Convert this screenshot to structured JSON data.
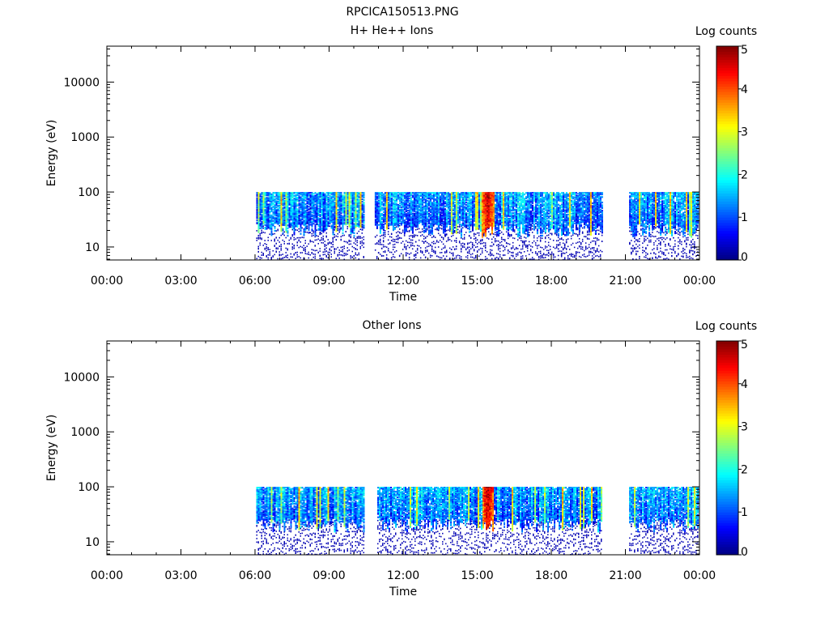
{
  "figure_title": "RPCICA150513.PNG",
  "colorbar": {
    "label": "Log counts",
    "min": 0,
    "max": 5,
    "ticks": [
      "0",
      "1",
      "2",
      "3",
      "4",
      "5"
    ],
    "colormap": "jet"
  },
  "chart_data": [
    {
      "type": "heatmap",
      "title": "H+ He++ Ions",
      "xlabel": "Time",
      "ylabel": "Energy (eV)",
      "x_ticks": [
        "00:00",
        "03:00",
        "06:00",
        "09:00",
        "12:00",
        "15:00",
        "18:00",
        "21:00",
        "00:00"
      ],
      "xlim_hours": [
        0,
        24
      ],
      "y_ticks": [
        "10",
        "100",
        "1000",
        "10000"
      ],
      "y_scale": "log",
      "ylim": [
        5.8,
        45000
      ],
      "value_label": "Log counts",
      "value_range": [
        0,
        5
      ],
      "data_segments_hours": [
        [
          6.05,
          10.4
        ],
        [
          10.85,
          20.05
        ],
        [
          21.15,
          23.95
        ]
      ],
      "energy_band_top_eV": 100,
      "peak_time_hours": 15.4,
      "peak_log_counts": 4.8
    },
    {
      "type": "heatmap",
      "title": "Other Ions",
      "xlabel": "Time",
      "ylabel": "Energy (eV)",
      "x_ticks": [
        "00:00",
        "03:00",
        "06:00",
        "09:00",
        "12:00",
        "15:00",
        "18:00",
        "21:00",
        "00:00"
      ],
      "xlim_hours": [
        0,
        24
      ],
      "y_ticks": [
        "10",
        "100",
        "1000",
        "10000"
      ],
      "y_scale": "log",
      "ylim": [
        5.8,
        45000
      ],
      "value_label": "Log counts",
      "value_range": [
        0,
        5
      ],
      "data_segments_hours": [
        [
          6.05,
          10.4
        ],
        [
          10.95,
          20.05
        ],
        [
          21.15,
          23.95
        ]
      ],
      "energy_band_top_eV": 100,
      "peak_time_hours": 15.4,
      "peak_log_counts": 4.8
    }
  ]
}
